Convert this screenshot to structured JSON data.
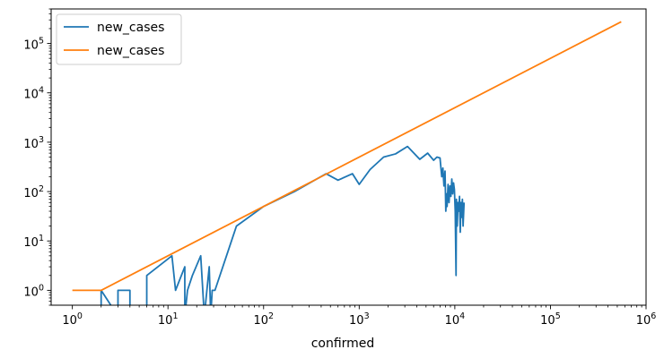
{
  "chart_data": {
    "type": "line",
    "title": "",
    "xlabel": "confirmed",
    "ylabel": "",
    "xscale": "log",
    "yscale": "log",
    "xlim": [
      0.6,
      1000000
    ],
    "ylim": [
      0.5,
      500000
    ],
    "grid": false,
    "legend": "top-left",
    "x_ticks": [
      {
        "value": 1,
        "base": "10",
        "exp": "0"
      },
      {
        "value": 10,
        "base": "10",
        "exp": "1"
      },
      {
        "value": 100,
        "base": "10",
        "exp": "2"
      },
      {
        "value": 1000,
        "base": "10",
        "exp": "3"
      },
      {
        "value": 10000,
        "base": "10",
        "exp": "4"
      },
      {
        "value": 100000,
        "base": "10",
        "exp": "5"
      },
      {
        "value": 1000000,
        "base": "10",
        "exp": "6"
      }
    ],
    "y_ticks": [
      {
        "value": 1,
        "base": "10",
        "exp": "0"
      },
      {
        "value": 10,
        "base": "10",
        "exp": "1"
      },
      {
        "value": 100,
        "base": "10",
        "exp": "2"
      },
      {
        "value": 1000,
        "base": "10",
        "exp": "3"
      },
      {
        "value": 10000,
        "base": "10",
        "exp": "4"
      },
      {
        "value": 100000,
        "base": "10",
        "exp": "5"
      }
    ],
    "series": [
      {
        "name": "new_cases",
        "color": "#1f77b4",
        "points": [
          [
            2,
            0.3
          ],
          [
            2,
            1
          ],
          [
            3,
            0.3
          ],
          [
            3,
            1
          ],
          [
            4,
            1
          ],
          [
            4,
            0.3
          ],
          [
            6,
            0.3
          ],
          [
            6,
            2
          ],
          [
            11,
            5
          ],
          [
            12,
            1
          ],
          [
            15,
            3
          ],
          [
            15,
            0.3
          ],
          [
            16,
            1
          ],
          [
            18,
            2
          ],
          [
            22,
            5
          ],
          [
            24,
            0.3
          ],
          [
            27,
            3
          ],
          [
            28,
            0.3
          ],
          [
            29,
            1
          ],
          [
            31,
            1
          ],
          [
            52,
            20
          ],
          [
            100,
            50
          ],
          [
            210,
            100
          ],
          [
            450,
            230
          ],
          [
            600,
            170
          ],
          [
            850,
            230
          ],
          [
            1000,
            140
          ],
          [
            1300,
            280
          ],
          [
            1800,
            500
          ],
          [
            2400,
            580
          ],
          [
            3200,
            820
          ],
          [
            4300,
            450
          ],
          [
            5200,
            600
          ],
          [
            6000,
            430
          ],
          [
            6500,
            500
          ],
          [
            7000,
            480
          ],
          [
            7300,
            200
          ],
          [
            7500,
            300
          ],
          [
            7700,
            130
          ],
          [
            7900,
            260
          ],
          [
            8050,
            40
          ],
          [
            8200,
            90
          ],
          [
            8300,
            50
          ],
          [
            8500,
            140
          ],
          [
            8700,
            60
          ],
          [
            8900,
            130
          ],
          [
            9100,
            80
          ],
          [
            9300,
            180
          ],
          [
            9500,
            90
          ],
          [
            9700,
            150
          ],
          [
            9900,
            110
          ],
          [
            10100,
            40
          ],
          [
            10300,
            2
          ],
          [
            10400,
            70
          ],
          [
            10600,
            20
          ],
          [
            10800,
            60
          ],
          [
            11000,
            40
          ],
          [
            11200,
            80
          ],
          [
            11400,
            15
          ],
          [
            11600,
            60
          ],
          [
            11800,
            30
          ],
          [
            12000,
            70
          ],
          [
            12200,
            20
          ],
          [
            12500,
            60
          ]
        ]
      },
      {
        "name": "new_cases",
        "color": "#ff7f0e",
        "points": [
          [
            1,
            1
          ],
          [
            2,
            1
          ],
          [
            10,
            5
          ],
          [
            100,
            50
          ],
          [
            200,
            100
          ],
          [
            450,
            225
          ],
          [
            550000,
            275000
          ]
        ]
      }
    ]
  }
}
